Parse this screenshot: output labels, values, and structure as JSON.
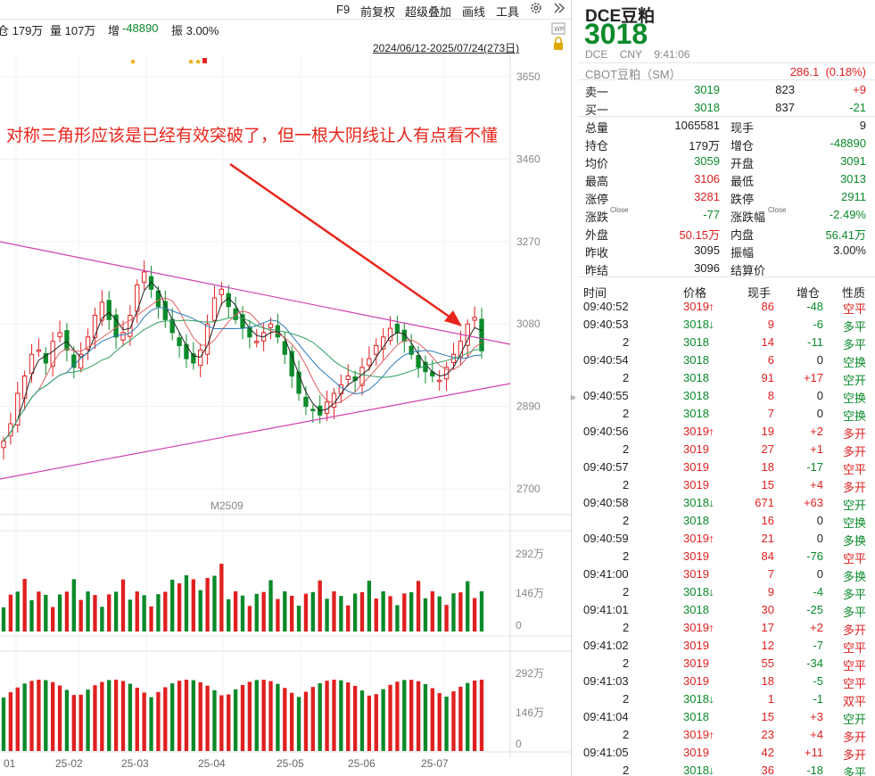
{
  "toolbar": {
    "items": [
      "F9",
      "前复权",
      "超级叠加",
      "画线",
      "工具"
    ],
    "settings_icon": "gear-icon",
    "collapse_icon": "double-chevron-right-icon"
  },
  "stats": {
    "open_interest": "仓 179万",
    "volume": "量 107万",
    "oi_change_label": "增",
    "oi_change_value": "-48890",
    "amplitude": "振 3.00%"
  },
  "range_label": "2024/06/12-2025/07/24(273日)",
  "annotation": "对称三角形应该是已经有效突破了，但一根大阴线让人有点看不懂",
  "chart": {
    "contract": "M2509",
    "price_ticks": [
      "3650",
      "3460",
      "3270",
      "3080",
      "2890",
      "2700"
    ],
    "vol_ticks": [
      "292万",
      "146万",
      "0"
    ],
    "oi_ticks": [
      "292万",
      "146万",
      "0"
    ],
    "x_labels": [
      "01",
      "25-02",
      "25-03",
      "25-04",
      "25-05",
      "25-06",
      "25-07"
    ]
  },
  "chart_data": {
    "type": "candlestick",
    "title": "",
    "ylim": [
      2700,
      3700
    ],
    "xlabels": [
      "01",
      "25-02",
      "25-03",
      "25-04",
      "25-05",
      "25-06",
      "25-07"
    ],
    "close_series_approx": [
      2810,
      2850,
      2920,
      2960,
      3010,
      3020,
      2990,
      3040,
      3060,
      3020,
      2980,
      3010,
      3050,
      3100,
      3130,
      3090,
      3050,
      3060,
      3100,
      3170,
      3200,
      3160,
      3120,
      3090,
      3060,
      3030,
      3000,
      2990,
      3020,
      3080,
      3140,
      3160,
      3120,
      3090,
      3070,
      3050,
      3040,
      3060,
      3080,
      3050,
      3010,
      2960,
      2920,
      2890,
      2880,
      2870,
      2900,
      2920,
      2940,
      2960,
      2950,
      2980,
      3000,
      3030,
      3050,
      3070,
      3060,
      3040,
      3010,
      2980,
      2970,
      2960,
      2950,
      2980,
      3010,
      3040,
      3080,
      3095,
      3018
    ],
    "volume_scale_labels": [
      "292万",
      "146万",
      "0"
    ]
  },
  "quote": {
    "name": "DCE豆粕",
    "price": "3018",
    "exchange": "DCE",
    "currency": "CNY",
    "time": "9:41:06",
    "cbot_name": "CBOT豆粕（SM）",
    "cbot_value": "286.1",
    "cbot_change": "(0.18%)",
    "sell1_label": "卖一",
    "sell1_price": "3019",
    "sell1_vol": "823",
    "sell1_chg": "+9",
    "buy1_label": "买一",
    "buy1_price": "3018",
    "buy1_vol": "837",
    "buy1_chg": "-21",
    "stats": [
      {
        "l1": "总量",
        "v1": "1065581",
        "l2": "现手",
        "v2": "9",
        "c1": "",
        "c2": ""
      },
      {
        "l1": "持仓",
        "v1": "179万",
        "l2": "增仓",
        "v2": "-48890",
        "c1": "",
        "c2": "green"
      },
      {
        "l1": "均价",
        "v1": "3059",
        "l2": "开盘",
        "v2": "3091",
        "c1": "green",
        "c2": "green"
      },
      {
        "l1": "最高",
        "v1": "3106",
        "l2": "最低",
        "v2": "3013",
        "c1": "red",
        "c2": "green"
      },
      {
        "l1": "涨停",
        "v1": "3281",
        "l2": "跌停",
        "v2": "2911",
        "c1": "red",
        "c2": "green"
      },
      {
        "l1": "涨跌",
        "v1": "-77",
        "l2": "涨跌幅",
        "v2": "-2.49%",
        "c1": "green",
        "c2": "green"
      },
      {
        "l1": "外盘",
        "v1": "50.15万",
        "l2": "内盘",
        "v2": "56.41万",
        "c1": "red",
        "c2": "green"
      },
      {
        "l1": "昨收",
        "v1": "3095",
        "l2": "振幅",
        "v2": "3.00%",
        "c1": "",
        "c2": ""
      },
      {
        "l1": "昨结",
        "v1": "3096",
        "l2": "结算价",
        "v2": "",
        "c1": "",
        "c2": ""
      }
    ],
    "close_sup": "Close"
  },
  "ticks_header": [
    "时间",
    "价格",
    "现手",
    "增仓",
    "性质"
  ],
  "ticks": [
    {
      "t": "09:40:52",
      "p": "3019",
      "d": "up",
      "v": "86",
      "o": "-48",
      "n": "空平"
    },
    {
      "t": "09:40:53",
      "p": "3018",
      "d": "dn",
      "v": "9",
      "o": "-6",
      "n": "多平"
    },
    {
      "t": "2",
      "p": "3018",
      "d": "",
      "v": "14",
      "o": "-11",
      "n": "多平"
    },
    {
      "t": "09:40:54",
      "p": "3018",
      "d": "",
      "v": "6",
      "o": "0",
      "n": "空换"
    },
    {
      "t": "2",
      "p": "3018",
      "d": "",
      "v": "91",
      "o": "+17",
      "n": "空开"
    },
    {
      "t": "09:40:55",
      "p": "3018",
      "d": "",
      "v": "8",
      "o": "0",
      "n": "空换"
    },
    {
      "t": "2",
      "p": "3018",
      "d": "",
      "v": "7",
      "o": "0",
      "n": "空换"
    },
    {
      "t": "09:40:56",
      "p": "3019",
      "d": "up",
      "v": "19",
      "o": "+2",
      "n": "多开"
    },
    {
      "t": "2",
      "p": "3019",
      "d": "",
      "v": "27",
      "o": "+1",
      "n": "多开"
    },
    {
      "t": "09:40:57",
      "p": "3019",
      "d": "",
      "v": "18",
      "o": "-17",
      "n": "空平"
    },
    {
      "t": "2",
      "p": "3019",
      "d": "",
      "v": "15",
      "o": "+4",
      "n": "多开"
    },
    {
      "t": "09:40:58",
      "p": "3018",
      "d": "dn",
      "v": "671",
      "o": "+63",
      "n": "空开"
    },
    {
      "t": "2",
      "p": "3018",
      "d": "",
      "v": "16",
      "o": "0",
      "n": "空换"
    },
    {
      "t": "09:40:59",
      "p": "3019",
      "d": "up",
      "v": "21",
      "o": "0",
      "n": "多换"
    },
    {
      "t": "2",
      "p": "3019",
      "d": "",
      "v": "84",
      "o": "-76",
      "n": "空平"
    },
    {
      "t": "09:41:00",
      "p": "3019",
      "d": "",
      "v": "7",
      "o": "0",
      "n": "多换"
    },
    {
      "t": "2",
      "p": "3018",
      "d": "dn",
      "v": "9",
      "o": "-4",
      "n": "多平"
    },
    {
      "t": "09:41:01",
      "p": "3018",
      "d": "",
      "v": "30",
      "o": "-25",
      "n": "多平"
    },
    {
      "t": "2",
      "p": "3019",
      "d": "up",
      "v": "17",
      "o": "+2",
      "n": "多开"
    },
    {
      "t": "09:41:02",
      "p": "3019",
      "d": "",
      "v": "12",
      "o": "-7",
      "n": "空平"
    },
    {
      "t": "2",
      "p": "3019",
      "d": "",
      "v": "55",
      "o": "-34",
      "n": "空平"
    },
    {
      "t": "09:41:03",
      "p": "3019",
      "d": "",
      "v": "18",
      "o": "-5",
      "n": "空平"
    },
    {
      "t": "2",
      "p": "3018",
      "d": "dn",
      "v": "1",
      "o": "-1",
      "n": "双平"
    },
    {
      "t": "09:41:04",
      "p": "3018",
      "d": "",
      "v": "15",
      "o": "+3",
      "n": "空开"
    },
    {
      "t": "2",
      "p": "3019",
      "d": "up",
      "v": "23",
      "o": "+4",
      "n": "多开"
    },
    {
      "t": "09:41:05",
      "p": "3019",
      "d": "",
      "v": "42",
      "o": "+11",
      "n": "多开"
    },
    {
      "t": "2",
      "p": "3018",
      "d": "dn",
      "v": "36",
      "o": "-18",
      "n": "多平"
    }
  ],
  "colors": {
    "up": "#e02020",
    "down": "#0a8a2a",
    "trendline": "#d040b0",
    "arrow": "#e8261c"
  }
}
